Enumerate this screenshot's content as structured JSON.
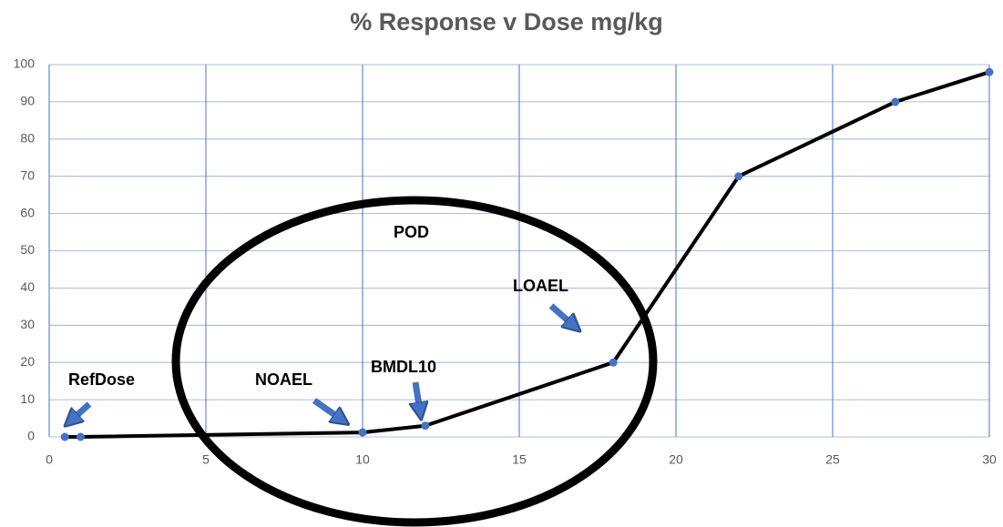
{
  "chart_data": {
    "type": "line",
    "title": "% Response v Dose mg/kg",
    "x": [
      0.5,
      1,
      10,
      12,
      18,
      22,
      27,
      30
    ],
    "values": [
      0,
      0,
      1.2,
      3,
      20,
      70,
      90,
      98
    ],
    "line_color": "#000000",
    "marker_color": "#4472c4",
    "xlim": [
      0,
      30
    ],
    "xticks": [
      0,
      5,
      10,
      15,
      20,
      25,
      30
    ],
    "ylim": [
      0,
      100
    ],
    "yticks": [
      0,
      10,
      20,
      30,
      40,
      50,
      60,
      70,
      80,
      90,
      100
    ],
    "grid": true,
    "grid_color": "#4472c4",
    "annotations": [
      "RefDose",
      "NOAEL",
      "BMDL10",
      "LOAEL",
      "POD"
    ]
  }
}
